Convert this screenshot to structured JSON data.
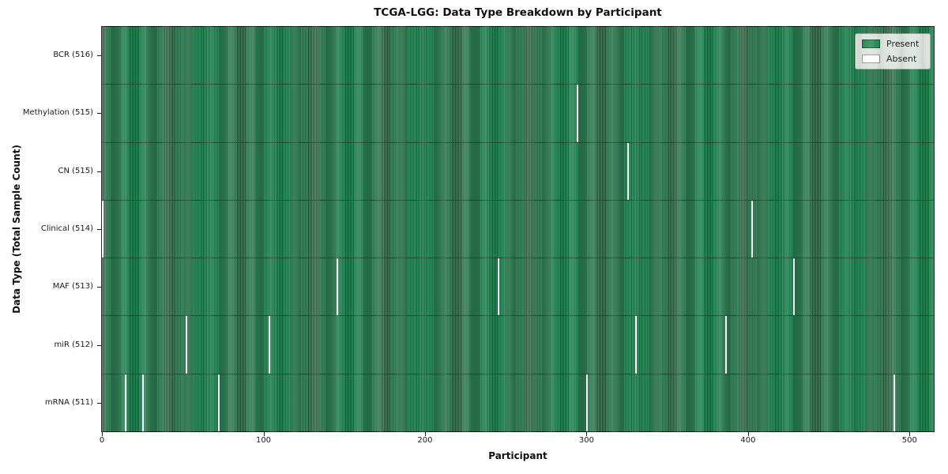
{
  "chart_data": {
    "type": "heatmap",
    "title": "TCGA-LGG: Data Type Breakdown by Participant",
    "xlabel": "Participant",
    "ylabel": "Data Type (Total Sample Count)",
    "x_ticks": [
      0,
      100,
      200,
      300,
      400,
      500
    ],
    "x_range": [
      0,
      516
    ],
    "n_participants": 516,
    "grid": false,
    "legend_position": "upper right",
    "legend": [
      {
        "label": "Present",
        "color": "#2e8b57"
      },
      {
        "label": "Absent",
        "color": "#ffffff"
      }
    ],
    "colors": {
      "present_fill": "#339161",
      "present_edge": "#194d2e",
      "absent": "#ffffff",
      "plot_border": "#161616"
    },
    "rows": [
      {
        "data_type": "BCR",
        "label": "BCR (516)",
        "total_samples": 516,
        "absent_participants": []
      },
      {
        "data_type": "Methylation",
        "label": "Methylation (515)",
        "total_samples": 515,
        "absent_participants": [
          294
        ]
      },
      {
        "data_type": "CN",
        "label": "CN (515)",
        "total_samples": 515,
        "absent_participants": [
          325
        ]
      },
      {
        "data_type": "Clinical",
        "label": "Clinical (514)",
        "total_samples": 514,
        "absent_participants": [
          0,
          402
        ]
      },
      {
        "data_type": "MAF",
        "label": "MAF (513)",
        "total_samples": 513,
        "absent_participants": [
          145,
          245,
          428
        ]
      },
      {
        "data_type": "miR",
        "label": "miR (512)",
        "total_samples": 512,
        "absent_participants": [
          52,
          103,
          330,
          386
        ]
      },
      {
        "data_type": "mRNA",
        "label": "mRNA (511)",
        "total_samples": 511,
        "absent_participants": [
          14,
          25,
          72,
          300,
          490
        ]
      }
    ]
  }
}
